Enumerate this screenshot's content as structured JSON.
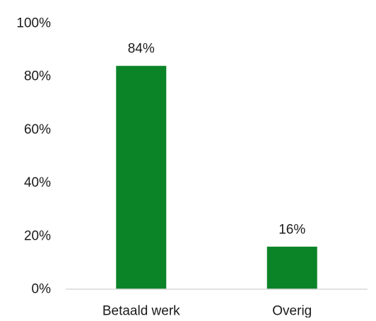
{
  "chart_data": {
    "type": "bar",
    "title": "",
    "xlabel": "",
    "ylabel": "",
    "categories": [
      "Betaald werk",
      "Overig"
    ],
    "values": [
      84,
      16
    ],
    "data_labels": [
      "84%",
      "16%"
    ],
    "ylim": [
      0,
      100
    ],
    "y_ticks": [
      0,
      20,
      40,
      60,
      80,
      100
    ],
    "y_tick_labels": [
      "0%",
      "20%",
      "40%",
      "60%",
      "80%",
      "100%"
    ],
    "grid": false,
    "legend": "none",
    "colors": {
      "bar": "#0b8428",
      "axis": "#d9d9d9",
      "text": "#1a1a1a"
    }
  }
}
